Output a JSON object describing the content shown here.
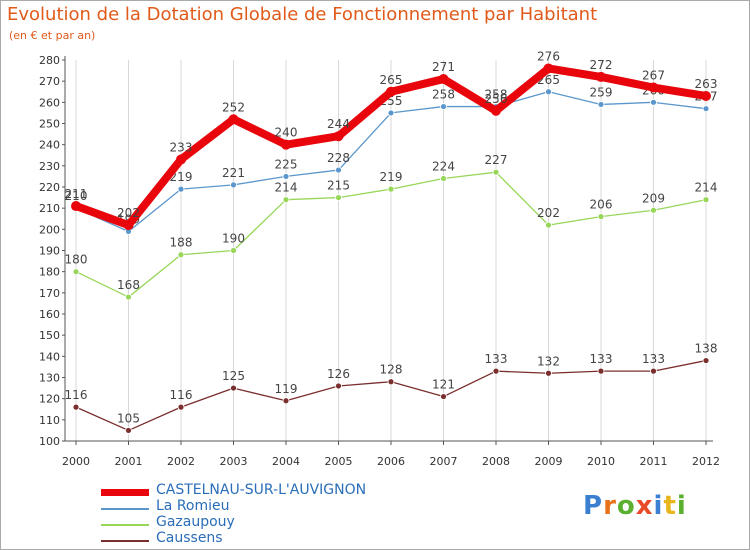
{
  "title": "Evolution de la Dotation Globale de Fonctionnement par Habitant",
  "subtitle": "(en € et par an)",
  "logo": {
    "text": "Proxiti",
    "letter_colors": [
      "#3b7fd0",
      "#e8731d",
      "#5cb030",
      "#e84a2a",
      "#3b7fd0",
      "#e8b51d",
      "#5cb030"
    ]
  },
  "chart_data": {
    "type": "line",
    "title": "Evolution de la Dotation Globale de Fonctionnement par Habitant",
    "subtitle": "(en € et par an)",
    "x": [
      "2000",
      "2001",
      "2002",
      "2003",
      "2004",
      "2005",
      "2006",
      "2007",
      "2008",
      "2009",
      "2010",
      "2011",
      "2012"
    ],
    "ylim": [
      100,
      280
    ],
    "yticks": [
      100,
      110,
      120,
      130,
      140,
      150,
      160,
      170,
      180,
      190,
      200,
      210,
      220,
      230,
      240,
      250,
      260,
      270,
      280
    ],
    "grid": "vertical",
    "legend_position": "bottom-left",
    "series": [
      {
        "name": "CASTELNAU-SUR-L'AUVIGNON",
        "color": "#e8060c",
        "values": [
          211,
          202,
          233,
          252,
          240,
          244,
          265,
          271,
          256,
          276,
          272,
          267,
          263
        ]
      },
      {
        "name": "La Romieu",
        "color": "#5b97cc",
        "values": [
          210,
          199,
          219,
          221,
          225,
          228,
          255,
          258,
          258,
          265,
          259,
          260,
          257
        ]
      },
      {
        "name": "Gazaupouy",
        "color": "#98d65a",
        "values": [
          180,
          168,
          188,
          190,
          214,
          215,
          219,
          224,
          227,
          202,
          206,
          209,
          214
        ]
      },
      {
        "name": "Caussens",
        "color": "#7a2e2e",
        "values": [
          116,
          105,
          116,
          125,
          119,
          126,
          128,
          121,
          133,
          132,
          133,
          133,
          138
        ]
      }
    ]
  }
}
